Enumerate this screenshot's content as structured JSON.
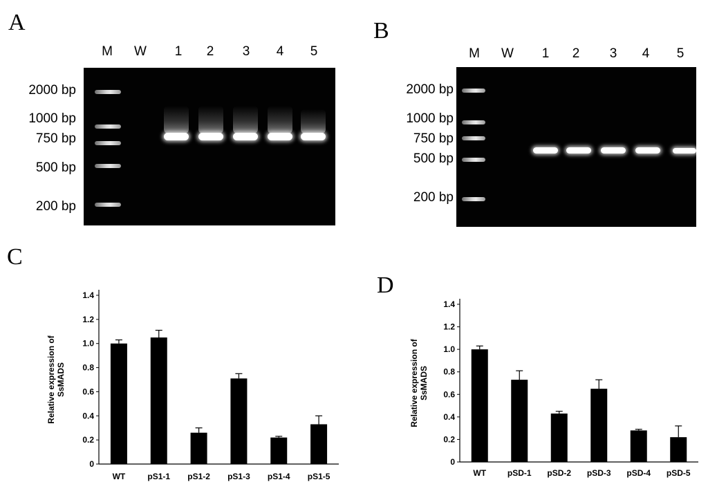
{
  "panels": {
    "A": {
      "letter": "A",
      "lanes": [
        "M",
        "W",
        "1",
        "2",
        "3",
        "4",
        "5"
      ],
      "sizes": [
        "2000 bp",
        "1000 bp",
        "750 bp",
        "500 bp",
        "200 bp"
      ]
    },
    "B": {
      "letter": "B",
      "lanes": [
        "M",
        "W",
        "1",
        "2",
        "3",
        "4",
        "5"
      ],
      "sizes": [
        "2000 bp",
        "1000 bp",
        "750 bp",
        "500 bp",
        "200 bp"
      ]
    },
    "C": {
      "letter": "C"
    },
    "D": {
      "letter": "D"
    }
  },
  "chart_data": [
    {
      "type": "bar",
      "panel": "C",
      "categories": [
        "WT",
        "pS1-1",
        "pS1-2",
        "pS1-3",
        "pS1-4",
        "pS1-5"
      ],
      "values": [
        1.0,
        1.05,
        0.26,
        0.71,
        0.22,
        0.33
      ],
      "errors": [
        0.03,
        0.06,
        0.04,
        0.04,
        0.01,
        0.07
      ],
      "ylabel": "Relative expression of SsMADS",
      "ylabel_lines": [
        "Relative expression of",
        "SsMADS"
      ],
      "ylim": [
        0,
        1.4
      ],
      "yticks": [
        "0",
        "0.2",
        "0.4",
        "0.6",
        "0.8",
        "1.0",
        "1.2",
        "1.4"
      ],
      "bar_color": "#000000"
    },
    {
      "type": "bar",
      "panel": "D",
      "categories": [
        "WT",
        "pSD-1",
        "pSD-2",
        "pSD-3",
        "pSD-4",
        "pSD-5"
      ],
      "values": [
        1.0,
        0.73,
        0.43,
        0.65,
        0.28,
        0.22
      ],
      "errors": [
        0.03,
        0.08,
        0.02,
        0.08,
        0.01,
        0.1
      ],
      "ylabel": "Relative expression of SsMADS",
      "ylabel_lines": [
        "Relative expression of",
        "SsMADS"
      ],
      "ylim": [
        0,
        1.4
      ],
      "yticks": [
        "0",
        "0.2",
        "0.4",
        "0.6",
        "0.8",
        "1.0",
        "1.2",
        "1.4"
      ],
      "bar_color": "#000000"
    }
  ]
}
